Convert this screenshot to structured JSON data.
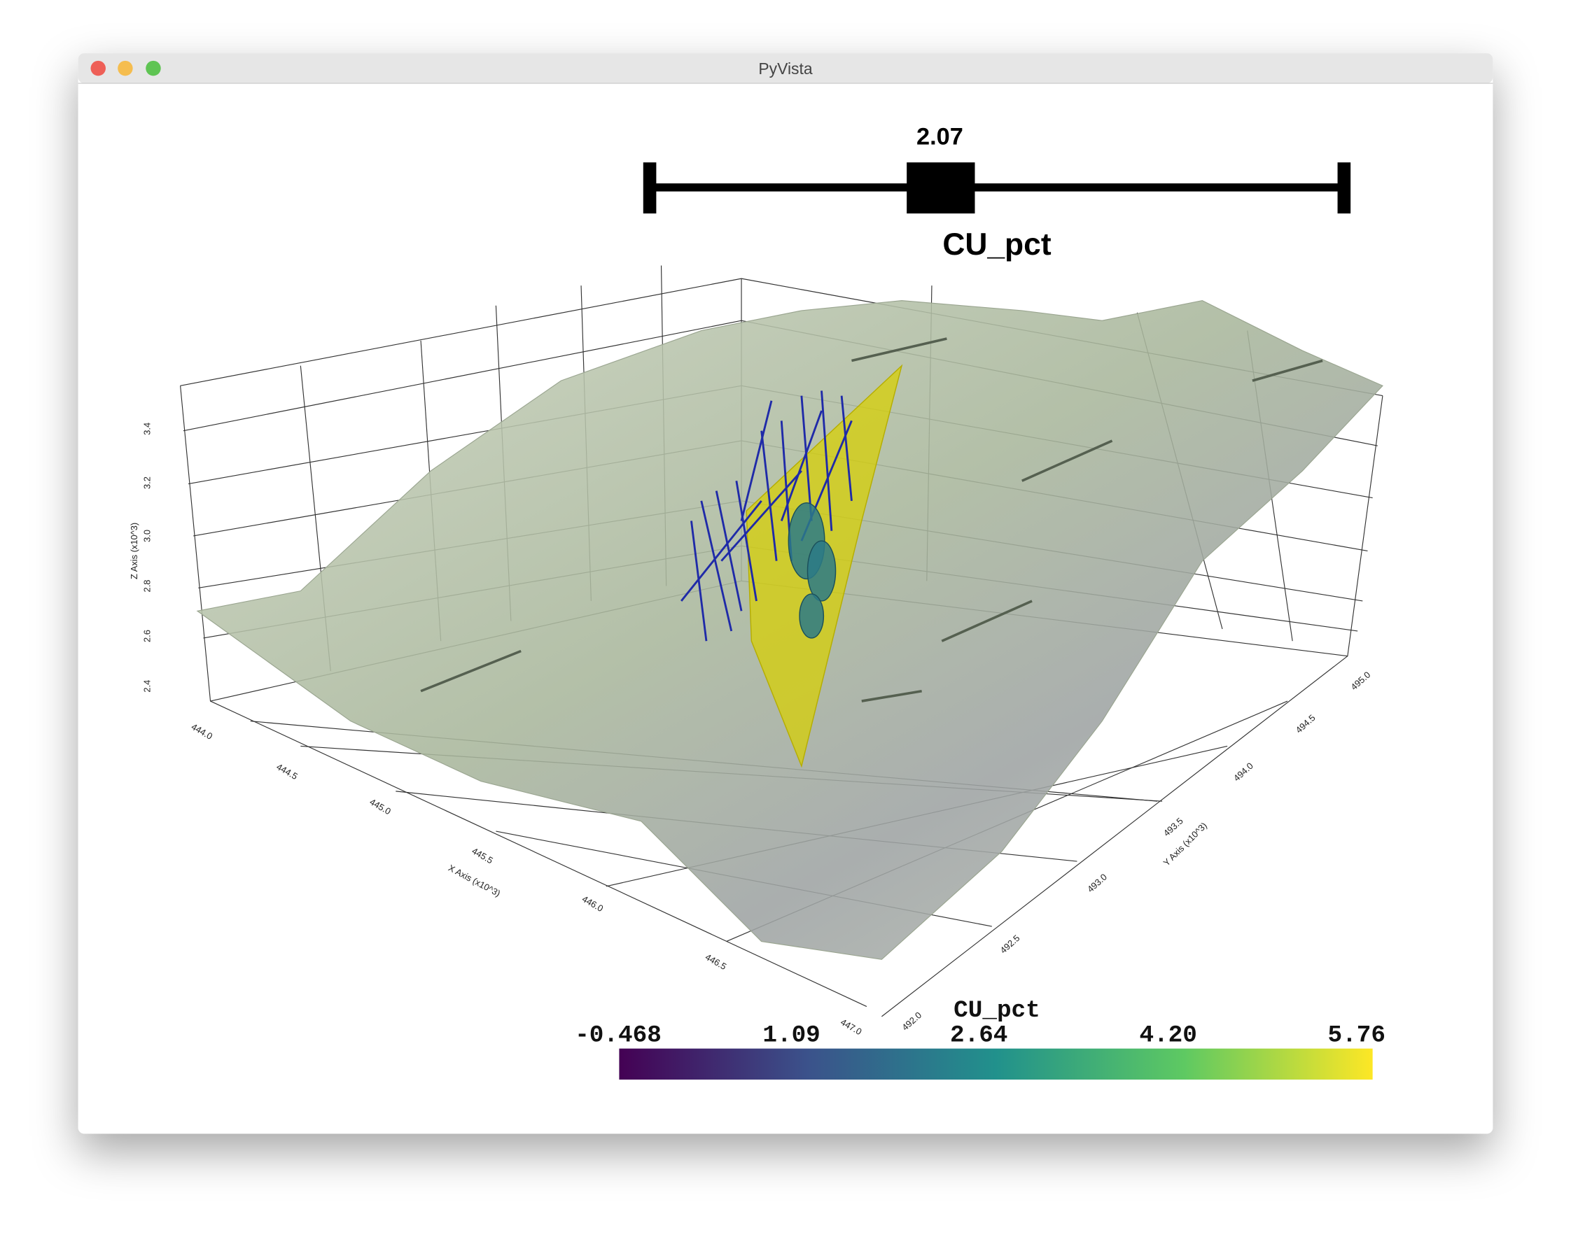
{
  "window": {
    "title": "PyVista"
  },
  "slider": {
    "value_label": "2.07",
    "title": "CU_pct"
  },
  "axes": {
    "z_label": "Z Axis (x10^3)",
    "z_ticks": [
      "3.4",
      "3.2",
      "3.0",
      "2.8",
      "2.6",
      "2.4"
    ],
    "x_label": "X Axis (x10^3)",
    "x_ticks": [
      "444.0",
      "444.5",
      "445.0",
      "445.5",
      "446.0",
      "446.5",
      "447.0"
    ],
    "y_label": "Y Axis (x10^3)",
    "y_ticks": [
      "492.0",
      "492.5",
      "493.0",
      "493.5",
      "494.0",
      "494.5",
      "495.0"
    ]
  },
  "colorbar": {
    "title": "CU_pct",
    "labels": [
      "-0.468",
      "1.09",
      "2.64",
      "4.20",
      "5.76"
    ]
  }
}
